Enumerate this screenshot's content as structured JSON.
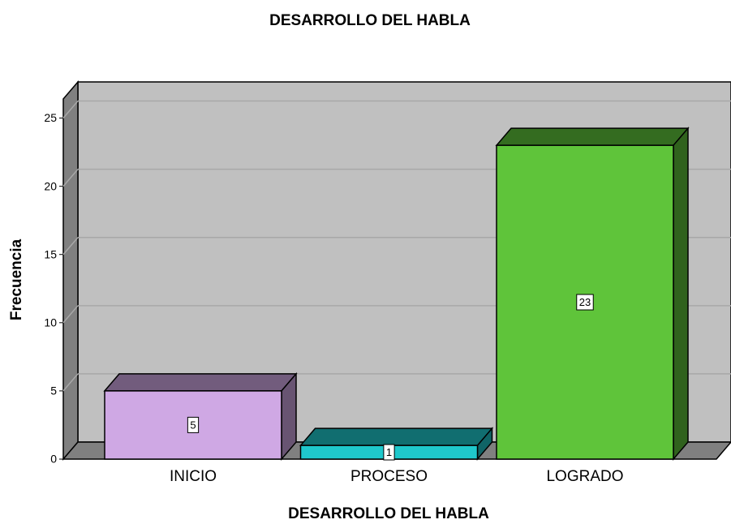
{
  "chart_data": {
    "type": "bar",
    "title": "DESARROLLO DEL HABLA",
    "xlabel": "DESARROLLO DEL HABLA",
    "ylabel": "Frecuencia",
    "categories": [
      "INICIO",
      "PROCESO",
      "LOGRADO"
    ],
    "values": [
      5,
      1,
      23
    ],
    "colors": [
      "#cfa8e4",
      "#1fc8cc",
      "#5fc43a"
    ],
    "ylim": [
      0,
      26.4
    ],
    "yticks": [
      0,
      5,
      10,
      15,
      20,
      25
    ],
    "grid": true
  }
}
